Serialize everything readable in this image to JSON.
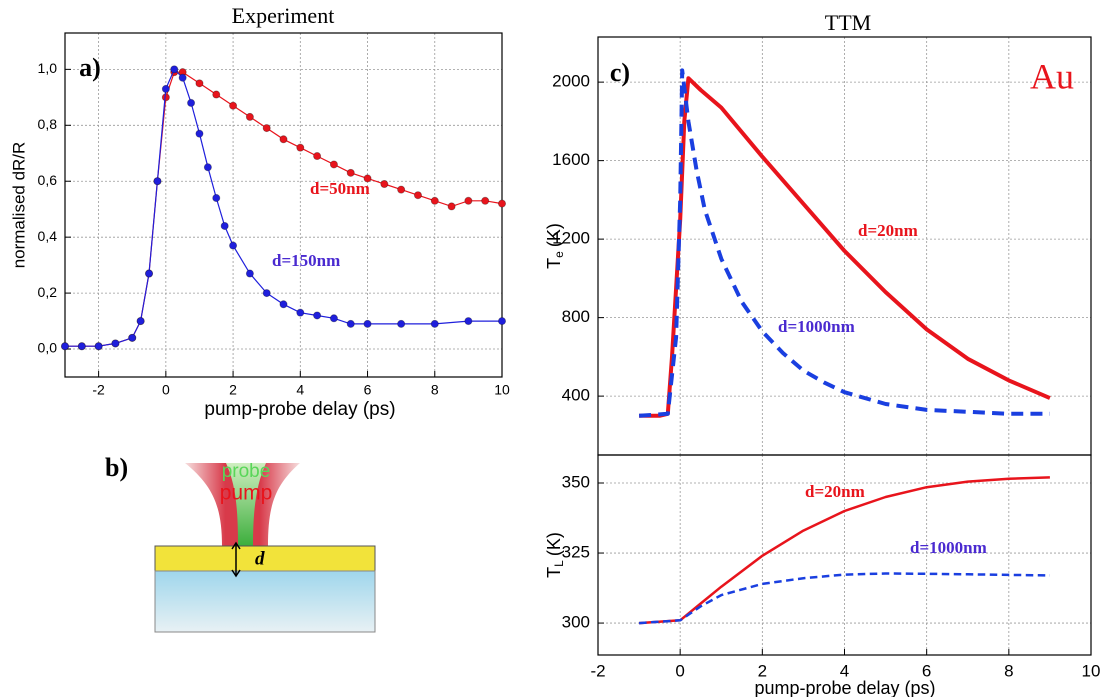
{
  "chart_data": [
    {
      "type": "scatter",
      "title": "Experiment",
      "panel_label": "a)",
      "x_label": "pump-probe delay (ps)",
      "y_label": "normalised dR/R",
      "xlim": [
        -3,
        10
      ],
      "xticks": [
        -2,
        0,
        2,
        4,
        6,
        8,
        10
      ],
      "ylim": [
        -0.1,
        1.13
      ],
      "yticks": [
        {
          "value": 0,
          "label": "0,0"
        },
        {
          "value": 0.2,
          "label": "0,2"
        },
        {
          "value": 0.4,
          "label": "0,4"
        },
        {
          "value": 0.6,
          "label": "0,6"
        },
        {
          "value": 0.8,
          "label": "0,8"
        },
        {
          "value": 1.0,
          "label": "1,0"
        }
      ],
      "grid": true,
      "series": [
        {
          "name": "d=50nm",
          "color": "#e8141c",
          "x": [
            -3,
            -2.5,
            -2,
            -1.5,
            -1,
            -0.75,
            -0.5,
            -0.25,
            0,
            0.25,
            0.5,
            1,
            1.5,
            2,
            2.5,
            3,
            3.5,
            4,
            4.5,
            5,
            5.5,
            6,
            6.5,
            7,
            7.5,
            8,
            8.5,
            9,
            9.5,
            10
          ],
          "values": [
            0.01,
            0.01,
            0.01,
            0.02,
            0.04,
            0.1,
            0.27,
            0.6,
            0.9,
            0.99,
            0.99,
            0.95,
            0.91,
            0.87,
            0.83,
            0.79,
            0.75,
            0.72,
            0.69,
            0.66,
            0.63,
            0.61,
            0.59,
            0.57,
            0.55,
            0.53,
            0.51,
            0.53,
            0.53,
            0.52
          ]
        },
        {
          "name": "d=150nm",
          "color": "#1f1fdc",
          "x": [
            -3,
            -2.5,
            -2,
            -1.5,
            -1,
            -0.75,
            -0.5,
            -0.25,
            0,
            0.25,
            0.5,
            0.75,
            1,
            1.25,
            1.5,
            1.75,
            2,
            2.5,
            3,
            3.5,
            4,
            4.5,
            5,
            5.5,
            6,
            7,
            8,
            9,
            10
          ],
          "values": [
            0.01,
            0.01,
            0.01,
            0.02,
            0.04,
            0.1,
            0.27,
            0.6,
            0.93,
            1.0,
            0.97,
            0.88,
            0.77,
            0.65,
            0.54,
            0.44,
            0.37,
            0.27,
            0.2,
            0.16,
            0.13,
            0.12,
            0.11,
            0.09,
            0.09,
            0.09,
            0.09,
            0.1,
            0.1
          ]
        }
      ],
      "annotations": [
        {
          "text": "d=50nm",
          "color": "#e8141c"
        },
        {
          "text": "d=150nm",
          "color": "#4a2ad0"
        }
      ]
    },
    {
      "type": "line",
      "title": "TTM",
      "panel_label": "c)",
      "y_label": {
        "main": "T",
        "sub": "e",
        "unit": "(K)"
      },
      "xlim": [
        -2,
        10
      ],
      "ylim": [
        100,
        2230
      ],
      "yticks": [
        400,
        800,
        1200,
        1600,
        2000
      ],
      "grid": true,
      "series": [
        {
          "name": "d=20nm",
          "color": "#e8141c",
          "line_style": "solid",
          "x": [
            -1,
            -0.5,
            -0.3,
            -0.2,
            0,
            0.1,
            0.2,
            0.5,
            1,
            2,
            3,
            4,
            5,
            6,
            7,
            8,
            9
          ],
          "values": [
            300,
            300,
            310,
            600,
            1300,
            1800,
            2020,
            1960,
            1870,
            1620,
            1380,
            1140,
            930,
            740,
            590,
            480,
            390
          ]
        },
        {
          "name": "d=1000nm",
          "color": "#1a3fe0",
          "line_style": "dashed",
          "x": [
            -1,
            -0.3,
            -0.1,
            0,
            0.05,
            0.2,
            0.4,
            0.6,
            1,
            1.5,
            2,
            2.5,
            3,
            3.5,
            4,
            5,
            6,
            7,
            8,
            9
          ],
          "values": [
            300,
            310,
            700,
            1400,
            2060,
            1800,
            1550,
            1350,
            1100,
            880,
            730,
            620,
            530,
            470,
            420,
            360,
            330,
            320,
            310,
            310
          ]
        }
      ],
      "annotations": [
        {
          "text": "d=20nm",
          "color": "#e8141c"
        },
        {
          "text": "d=1000nm",
          "color": "#4a2ad0"
        },
        {
          "text": "Au",
          "color": "#e8141c"
        }
      ]
    },
    {
      "type": "line",
      "x_label": "pump-probe delay (ps)",
      "y_label": {
        "main": "T",
        "sub": "L",
        "unit": "(K)"
      },
      "xlim": [
        -2,
        10
      ],
      "xticks": [
        -2,
        0,
        2,
        4,
        6,
        8,
        10
      ],
      "ylim": [
        288.6,
        360
      ],
      "yticks": [
        300,
        325,
        350
      ],
      "grid": true,
      "series": [
        {
          "name": "d=20nm",
          "color": "#e8141c",
          "line_style": "solid",
          "x": [
            -1,
            0,
            0.5,
            1,
            2,
            3,
            4,
            5,
            6,
            7,
            8,
            9
          ],
          "values": [
            300,
            301,
            307,
            313,
            324,
            333,
            340,
            345,
            348.5,
            350.5,
            351.5,
            352
          ]
        },
        {
          "name": "d=1000nm",
          "color": "#1a3fe0",
          "line_style": "dashed",
          "x": [
            -1,
            0,
            0.5,
            1,
            2,
            3,
            4,
            5,
            6,
            7,
            8,
            9
          ],
          "values": [
            300,
            301,
            306,
            310,
            314,
            316,
            317.3,
            317.7,
            317.6,
            317.4,
            317.2,
            317
          ]
        }
      ],
      "annotations": [
        {
          "text": "d=20nm",
          "color": "#e8141c"
        },
        {
          "text": "d=1000nm",
          "color": "#4a2ad0"
        }
      ]
    }
  ],
  "diagram": {
    "label": "b)",
    "probe": "probe",
    "pump": "pump",
    "thickness": "d"
  }
}
